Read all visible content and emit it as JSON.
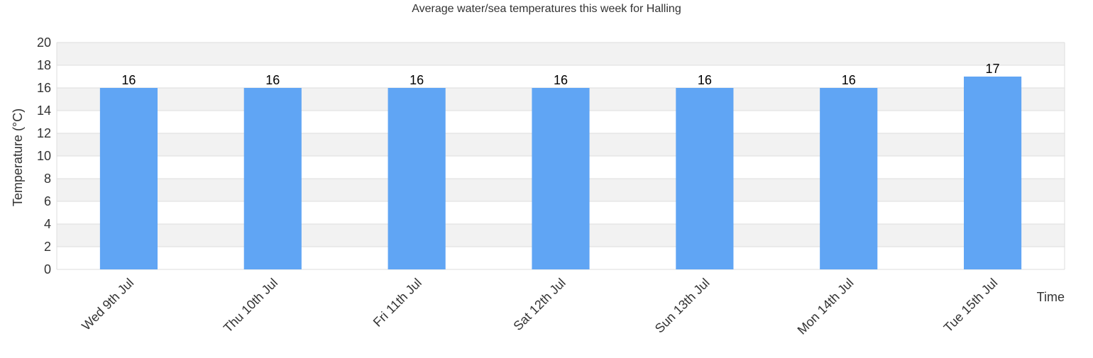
{
  "chart_data": {
    "type": "bar",
    "title": "Average water/sea temperatures this week for Halling",
    "xlabel": "Time",
    "ylabel": "Temperature (°C)",
    "categories": [
      "Wed 9th Jul",
      "Thu 10th Jul",
      "Fri 11th Jul",
      "Sat 12th Jul",
      "Sun 13th Jul",
      "Mon 14th Jul",
      "Tue 15th Jul"
    ],
    "values": [
      16,
      16,
      16,
      16,
      16,
      16,
      17
    ],
    "ylim": [
      0,
      20
    ],
    "yticks": [
      0,
      2,
      4,
      6,
      8,
      10,
      12,
      14,
      16,
      18,
      20
    ],
    "grid": true,
    "legend": "none",
    "colors": {
      "bar": "#60a5f4",
      "band_alt": "#f2f2f2",
      "grid": "#dddddd",
      "text": "#333333",
      "label": "#000000"
    }
  }
}
